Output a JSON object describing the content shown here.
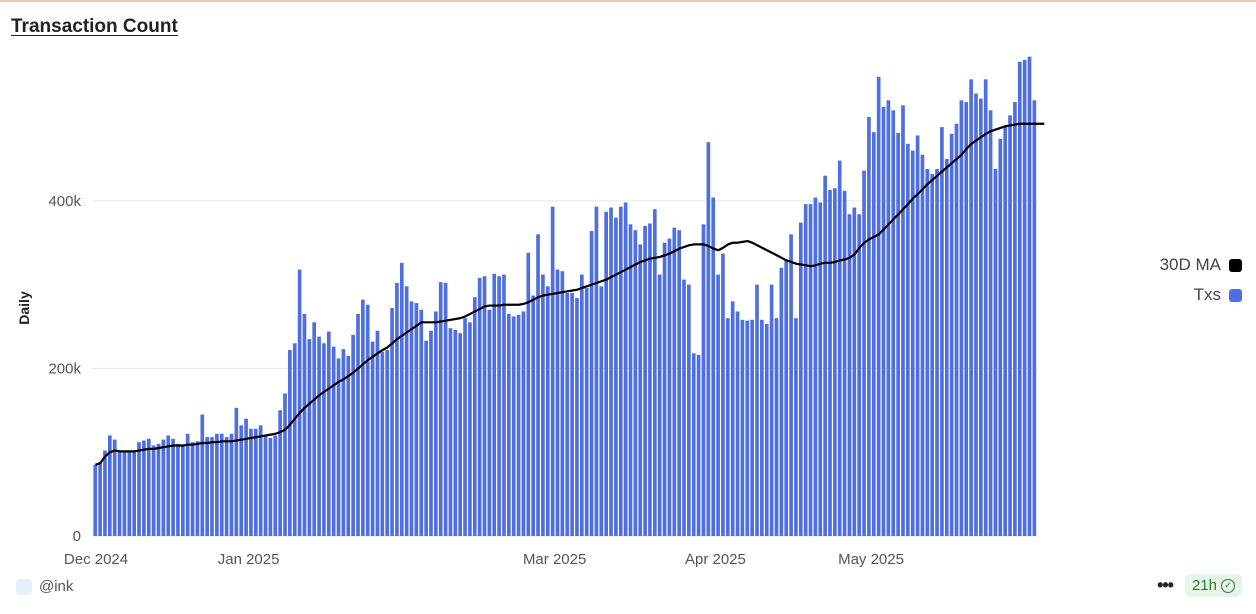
{
  "title": "Transaction Count",
  "footer": {
    "author": "@ink",
    "freshness": "21h"
  },
  "legend": [
    {
      "label": "30D MA",
      "color": "#000000",
      "icon": "ma-line-swatch"
    },
    {
      "label": "Txs",
      "color": "#4f6fe0",
      "icon": "bar-swatch"
    }
  ],
  "chart_data": {
    "type": "bar",
    "title": "Transaction Count",
    "xlabel": "",
    "ylabel": "Daily",
    "ylim": [
      0,
      580000
    ],
    "yticks": [
      0,
      200000,
      400000
    ],
    "ytick_labels": [
      "0",
      "200k",
      "400k"
    ],
    "grid": true,
    "legend_position": "right",
    "x_start": "2024-12-02",
    "x_end": "2025-06-02",
    "xtick_labels": [
      {
        "label": "Dec 2024",
        "date": "2024-12-01"
      },
      {
        "label": "Jan 2025",
        "date": "2025-01-01"
      },
      {
        "label": "Mar 2025",
        "date": "2025-03-01"
      },
      {
        "label": "Apr 2025",
        "date": "2025-04-01"
      },
      {
        "label": "May 2025",
        "date": "2025-05-01"
      }
    ],
    "series": [
      {
        "name": "Txs",
        "type": "bar",
        "color": "#4f6fe0",
        "values": [
          85000,
          88000,
          102000,
          120000,
          115000,
          100000,
          100000,
          100000,
          100000,
          112000,
          114000,
          116000,
          108000,
          110000,
          115000,
          120000,
          116000,
          110000,
          108000,
          122000,
          112000,
          113000,
          145000,
          118000,
          118000,
          122000,
          122000,
          118000,
          122000,
          153000,
          132000,
          140000,
          128000,
          128000,
          132000,
          121000,
          117000,
          120000,
          150000,
          170000,
          222000,
          230000,
          318000,
          265000,
          235000,
          255000,
          238000,
          230000,
          244000,
          226000,
          212000,
          223000,
          215000,
          240000,
          265000,
          282000,
          276000,
          232000,
          245000,
          220000,
          222000,
          272000,
          302000,
          326000,
          298000,
          280000,
          278000,
          270000,
          233000,
          245000,
          268000,
          303000,
          302000,
          248000,
          246000,
          242000,
          260000,
          255000,
          285000,
          308000,
          310000,
          270000,
          313000,
          310000,
          312000,
          265000,
          262000,
          264000,
          268000,
          338000,
          287000,
          360000,
          312000,
          298000,
          393000,
          318000,
          316000,
          290000,
          290000,
          284000,
          312000,
          296000,
          364000,
          393000,
          298000,
          387000,
          392000,
          380000,
          393000,
          398000,
          372000,
          365000,
          348000,
          370000,
          373000,
          390000,
          312000,
          350000,
          355000,
          368000,
          365000,
          306000,
          300000,
          218000,
          216000,
          372000,
          470000,
          404000,
          312000,
          337000,
          260000,
          280000,
          268000,
          258000,
          257000,
          258000,
          300000,
          258000,
          253000,
          300000,
          260000,
          320000,
          330000,
          360000,
          260000,
          374000,
          396000,
          396000,
          404000,
          398000,
          430000,
          413000,
          415000,
          448000,
          412000,
          384000,
          392000,
          384000,
          436000,
          500000,
          482000,
          548000,
          512000,
          520000,
          508000,
          481000,
          514000,
          468000,
          460000,
          478000,
          455000,
          438000,
          432000,
          438000,
          488000,
          450000,
          480000,
          492000,
          520000,
          518000,
          545000,
          528000,
          522000,
          545000,
          508000,
          438000,
          474000,
          488000,
          502000,
          518000,
          566000,
          568000,
          572000,
          520000
        ],
        "grid_legend": "Txs"
      },
      {
        "name": "30D MA",
        "type": "line",
        "color": "#000000",
        "values": [
          85000,
          87000,
          95000,
          100000,
          102000,
          101000,
          101000,
          101000,
          101000,
          102000,
          103000,
          104000,
          104000,
          105000,
          106000,
          107000,
          108000,
          108000,
          108000,
          109000,
          109000,
          110000,
          111000,
          111000,
          112000,
          112000,
          113000,
          113000,
          113000,
          114000,
          115000,
          116000,
          117000,
          118000,
          119000,
          120000,
          121000,
          122000,
          124000,
          127000,
          133000,
          140000,
          147000,
          153000,
          158000,
          163000,
          168000,
          172000,
          176000,
          180000,
          184000,
          187000,
          191000,
          195000,
          200000,
          205000,
          210000,
          214000,
          218000,
          222000,
          225000,
          230000,
          235000,
          239000,
          243000,
          247000,
          251000,
          255000,
          255000,
          255000,
          255000,
          256000,
          257000,
          258000,
          259000,
          260000,
          262000,
          265000,
          268000,
          271000,
          274000,
          275000,
          275000,
          275000,
          276000,
          276000,
          276000,
          276000,
          277000,
          279000,
          282000,
          285000,
          287000,
          288000,
          289000,
          290000,
          291000,
          292000,
          293000,
          294000,
          296000,
          298000,
          300000,
          302000,
          304000,
          306000,
          309000,
          312000,
          315000,
          318000,
          321000,
          324000,
          327000,
          329000,
          331000,
          332000,
          333000,
          335000,
          337000,
          340000,
          343000,
          345000,
          347000,
          348000,
          348000,
          348000,
          346000,
          343000,
          341000,
          344000,
          348000,
          350000,
          350000,
          351000,
          352000,
          350000,
          347000,
          344000,
          341000,
          338000,
          335000,
          332000,
          329000,
          327000,
          325000,
          324000,
          323000,
          322000,
          323000,
          325000,
          326000,
          326000,
          327000,
          329000,
          330000,
          332000,
          336000,
          344000,
          350000,
          354000,
          357000,
          360000,
          366000,
          372000,
          378000,
          384000,
          390000,
          396000,
          403000,
          408000,
          414000,
          420000,
          425000,
          430000,
          435000,
          440000,
          445000,
          450000,
          455000,
          462000,
          468000,
          472000,
          476000,
          480000,
          483000,
          485000,
          487000,
          489000,
          490000,
          491000,
          492000,
          492000,
          492000,
          492000,
          492000,
          492000
        ]
      }
    ]
  }
}
